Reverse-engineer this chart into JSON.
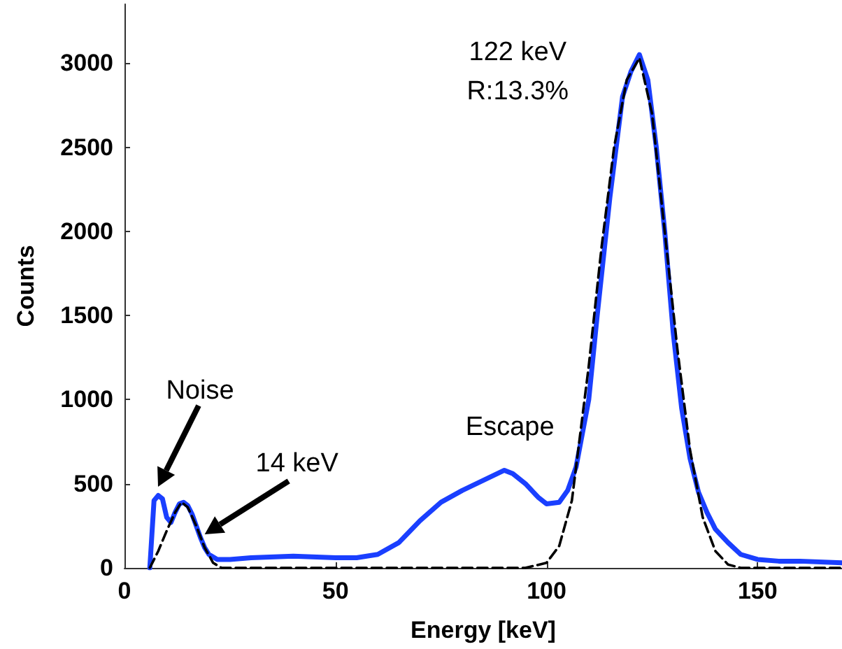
{
  "chart_data": {
    "type": "line",
    "xlabel": "Energy [keV]",
    "ylabel": "Counts",
    "xlim": [
      0,
      170
    ],
    "xticks": [
      0,
      50,
      100,
      150
    ],
    "ylim": [
      0,
      3350
    ],
    "yticks": [
      0,
      500,
      1000,
      1500,
      2000,
      2500,
      3000
    ],
    "grid": false,
    "marker": "none",
    "series": [
      {
        "color": "#1a3fff",
        "line_style": "solid",
        "x": [
          6,
          7,
          8,
          9,
          10,
          11,
          12,
          13,
          14,
          15,
          16,
          17,
          18,
          19,
          20,
          22,
          25,
          30,
          40,
          50,
          55,
          60,
          65,
          70,
          75,
          80,
          85,
          90,
          92,
          95,
          98,
          100,
          103,
          105,
          107,
          110,
          112,
          115,
          118,
          120,
          122,
          124,
          126,
          128,
          130,
          132,
          134,
          136,
          138,
          140,
          143,
          146,
          150,
          155,
          160,
          170
        ],
        "values": [
          0,
          400,
          430,
          410,
          300,
          270,
          330,
          380,
          390,
          370,
          320,
          250,
          180,
          120,
          80,
          50,
          50,
          60,
          70,
          60,
          60,
          80,
          150,
          280,
          390,
          460,
          520,
          580,
          560,
          500,
          420,
          380,
          390,
          460,
          600,
          1000,
          1500,
          2200,
          2800,
          2950,
          3050,
          2900,
          2500,
          2000,
          1400,
          950,
          650,
          450,
          330,
          230,
          150,
          80,
          50,
          40,
          40,
          30
        ]
      },
      {
        "color": "#000000",
        "line_style": "dashed",
        "x": [
          6,
          8,
          10,
          12,
          13.5,
          15,
          17,
          19,
          21,
          23,
          95,
          100,
          103,
          106,
          108,
          110,
          113,
          116,
          119,
          122,
          125,
          128,
          131,
          134,
          137,
          140,
          143,
          146,
          170
        ],
        "values": [
          0,
          100,
          220,
          330,
          390,
          360,
          250,
          120,
          30,
          0,
          0,
          30,
          130,
          400,
          800,
          1200,
          1900,
          2500,
          2900,
          3030,
          2700,
          2000,
          1300,
          700,
          300,
          100,
          20,
          0,
          0
        ]
      }
    ],
    "annotations": [
      "Noise",
      {
        "text": "14 keV",
        "x": 19,
        "y": 200
      },
      {
        "text": "Escape",
        "x": 90,
        "y": 580
      },
      {
        "text": "122 keV",
        "x": 122,
        "y": 3050
      },
      {
        "text": "R:13.3%",
        "x": 122,
        "y": 3050
      }
    ]
  }
}
